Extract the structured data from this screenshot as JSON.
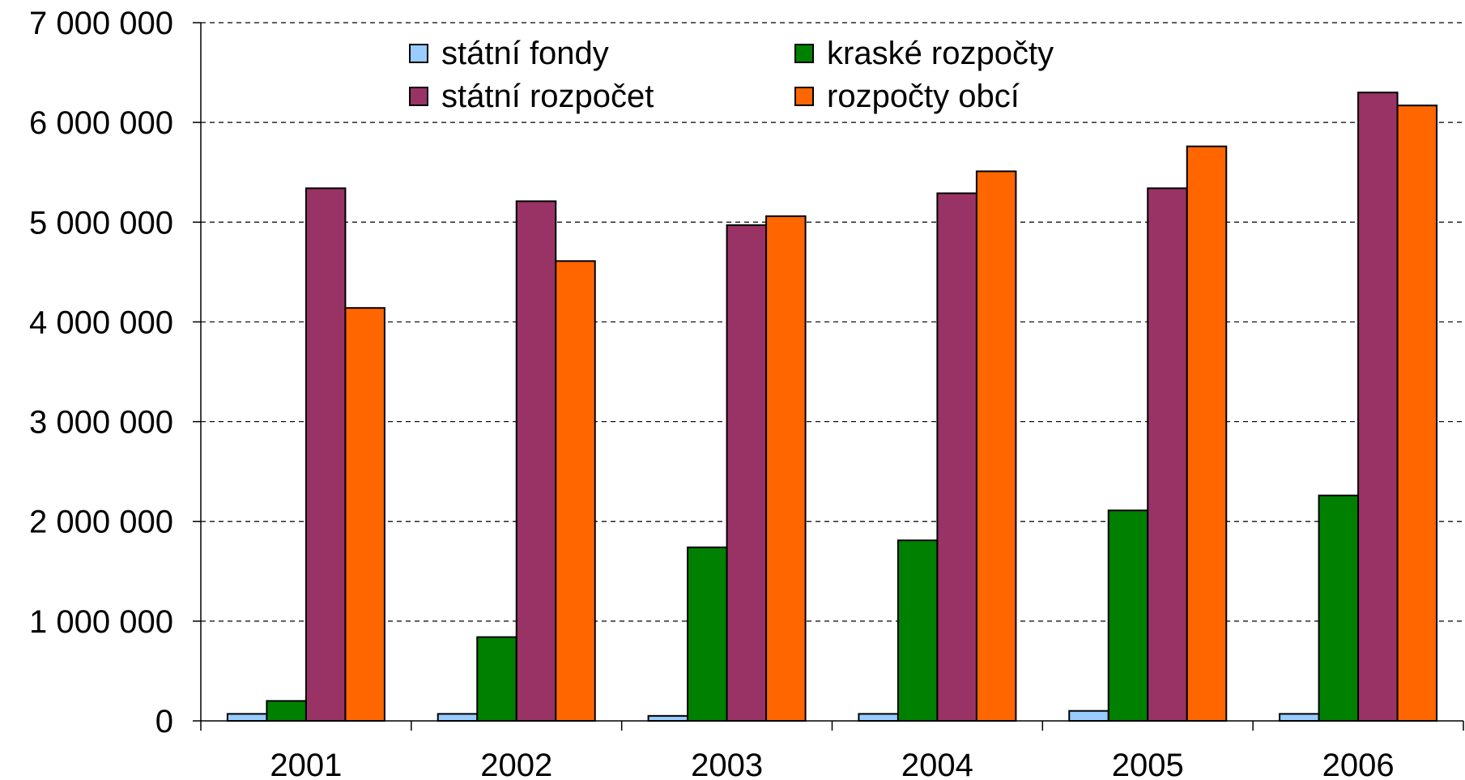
{
  "chart_data": {
    "type": "bar",
    "title": "",
    "xlabel": "",
    "ylabel": "",
    "categories": [
      "2001",
      "2002",
      "2003",
      "2004",
      "2005",
      "2006"
    ],
    "ylim": [
      0,
      7000000
    ],
    "yticks": [
      0,
      1000000,
      2000000,
      3000000,
      4000000,
      5000000,
      6000000,
      7000000
    ],
    "ytick_labels": [
      "0",
      "1 000 000",
      "2 000 000",
      "3 000 000",
      "4 000 000",
      "5 000 000",
      "6 000 000",
      "7 000 000"
    ],
    "grid": "horizontal dashed",
    "legend_position": "top",
    "series": [
      {
        "name": "státní fondy",
        "color": "#99CCFF",
        "values": [
          70000,
          70000,
          50000,
          70000,
          100000,
          70000
        ]
      },
      {
        "name": "kraské rozpočty",
        "color": "#008000",
        "values": [
          200000,
          840000,
          1740000,
          1810000,
          2110000,
          2260000
        ]
      },
      {
        "name": "státní rozpočet",
        "color": "#993366",
        "values": [
          5340000,
          5210000,
          4970000,
          5290000,
          5340000,
          6300000
        ]
      },
      {
        "name": "rozpočty obcí",
        "color": "#FF6600",
        "values": [
          4140000,
          4610000,
          5060000,
          5510000,
          5760000,
          6170000
        ]
      }
    ]
  }
}
